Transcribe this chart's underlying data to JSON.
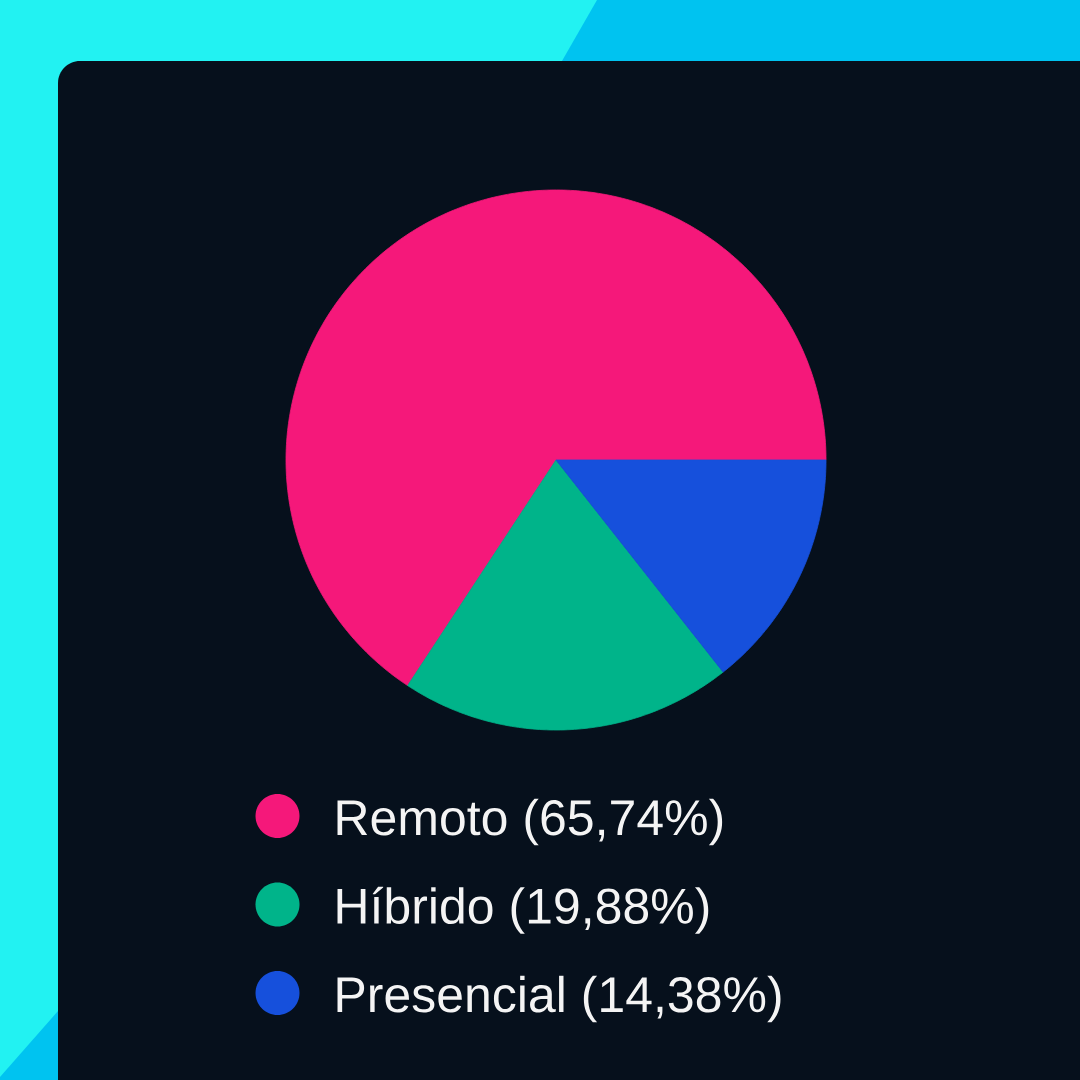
{
  "chart_data": {
    "type": "pie",
    "categories": [
      "Remoto",
      "Híbrido",
      "Presencial"
    ],
    "values": [
      65.74,
      19.88,
      14.38
    ],
    "colors": [
      "#f5187a",
      "#00b48a",
      "#1650dc"
    ],
    "value_labels": [
      "(65,74%)",
      "(19,88%)",
      "(14,38%)"
    ],
    "legend": "bottom"
  }
}
